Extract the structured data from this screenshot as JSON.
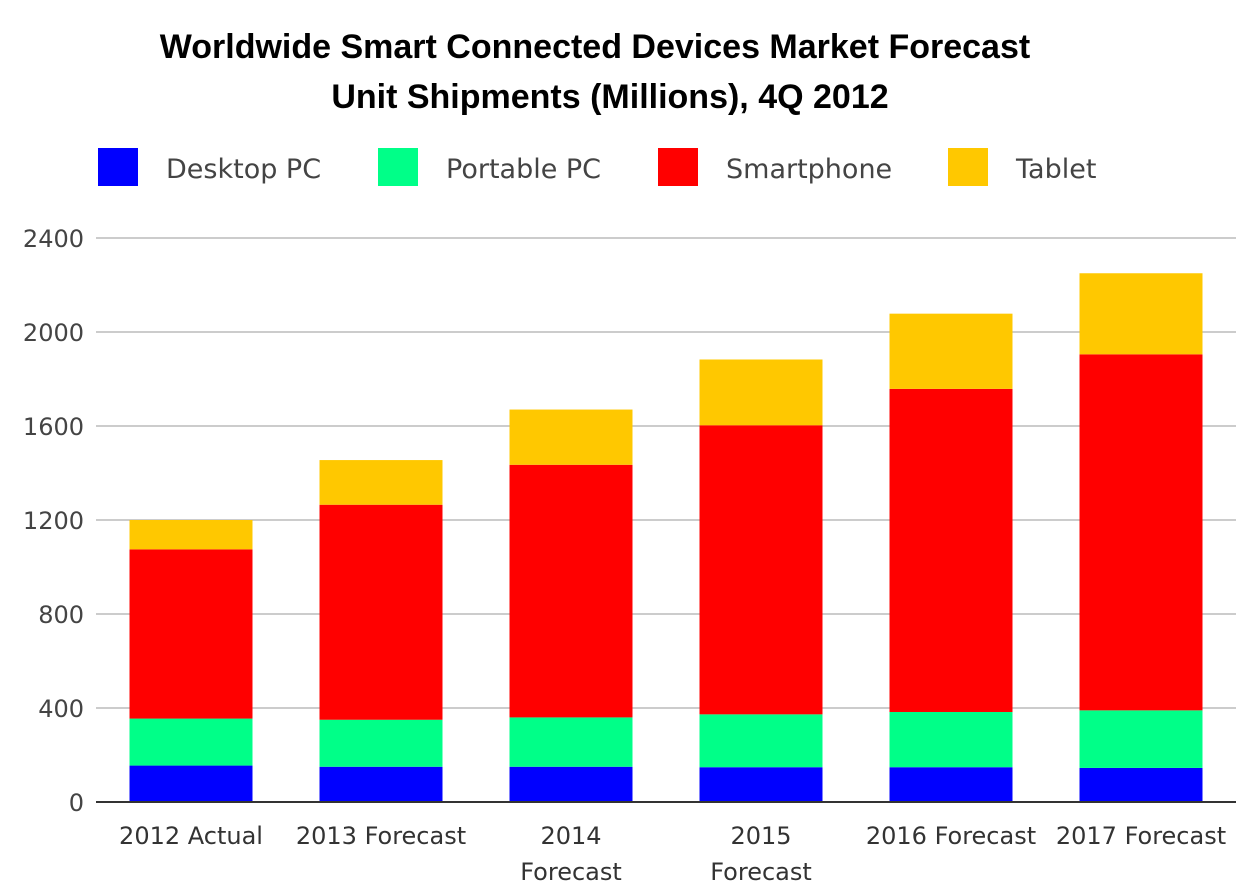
{
  "chart_data": {
    "type": "bar",
    "stacked": true,
    "title": "Worldwide Smart Connected Devices Market Forecast",
    "subtitle": "Unit Shipments (Millions), 4Q 2012",
    "xlabel": "",
    "ylabel": "",
    "categories": [
      [
        "2012 Actual"
      ],
      [
        "2013 Forecast"
      ],
      [
        "2014",
        "Forecast"
      ],
      [
        "2015",
        "Forecast"
      ],
      [
        "2016 Forecast"
      ],
      [
        "2017 Forecast"
      ]
    ],
    "series": [
      {
        "name": "Desktop PC",
        "color": "#0000ff",
        "values": [
          155,
          150,
          150,
          148,
          148,
          145
        ]
      },
      {
        "name": "Portable PC",
        "color": "#00ff88",
        "values": [
          200,
          200,
          210,
          225,
          235,
          245
        ]
      },
      {
        "name": "Smartphone",
        "color": "#ff0000",
        "values": [
          720,
          915,
          1075,
          1230,
          1375,
          1515
        ]
      },
      {
        "name": "Tablet",
        "color": "#ffc800",
        "values": [
          125,
          190,
          235,
          280,
          320,
          345
        ]
      }
    ],
    "ylim": [
      0,
      2400
    ],
    "yticks": [
      0,
      400,
      800,
      1200,
      1600,
      2000,
      2400
    ],
    "grid": true,
    "legend": "top"
  }
}
